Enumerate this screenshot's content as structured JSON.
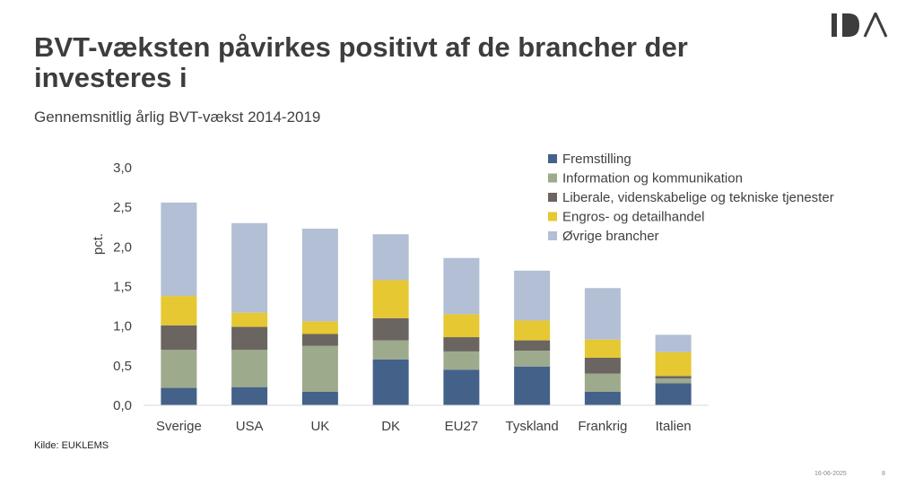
{
  "slide": {
    "title": "BVT-væksten påvirkes positivt af de brancher der investeres i",
    "subtitle": "Gennemsnitlig årlig BVT-vækst 2014-2019",
    "source": "Kilde: EUKLEMS",
    "date": "16-06-2025",
    "page_number": "8"
  },
  "chart_data": {
    "type": "bar",
    "stacked": true,
    "categories": [
      "Sverige",
      "USA",
      "UK",
      "DK",
      "EU27",
      "Tyskland",
      "Frankrig",
      "Italien"
    ],
    "ylabel": "pct.",
    "ylim": [
      0,
      3.0
    ],
    "yticks": [
      "0,0",
      "0,5",
      "1,0",
      "1,5",
      "2,0",
      "2,5",
      "3,0"
    ],
    "grid": false,
    "legend_position": "top-right",
    "series": [
      {
        "name": "Fremstilling",
        "color": "#44618a",
        "values": [
          0.22,
          0.23,
          0.17,
          0.58,
          0.45,
          0.49,
          0.17,
          0.28
        ]
      },
      {
        "name": "Information og kommunikation",
        "color": "#9daa8c",
        "values": [
          0.48,
          0.47,
          0.58,
          0.24,
          0.23,
          0.2,
          0.23,
          0.06
        ]
      },
      {
        "name": "Liberale, videnskabelige og tekniske tjenester",
        "color": "#6b6561",
        "values": [
          0.31,
          0.29,
          0.15,
          0.28,
          0.18,
          0.13,
          0.2,
          0.03
        ]
      },
      {
        "name": "Engros- og detailhandel",
        "color": "#e5c832",
        "values": [
          0.37,
          0.18,
          0.16,
          0.48,
          0.29,
          0.25,
          0.23,
          0.3
        ]
      },
      {
        "name": "Øvrige brancher",
        "color": "#b2bfd5",
        "values": [
          1.18,
          1.13,
          1.17,
          0.58,
          0.71,
          0.63,
          0.65,
          0.22
        ]
      }
    ]
  }
}
